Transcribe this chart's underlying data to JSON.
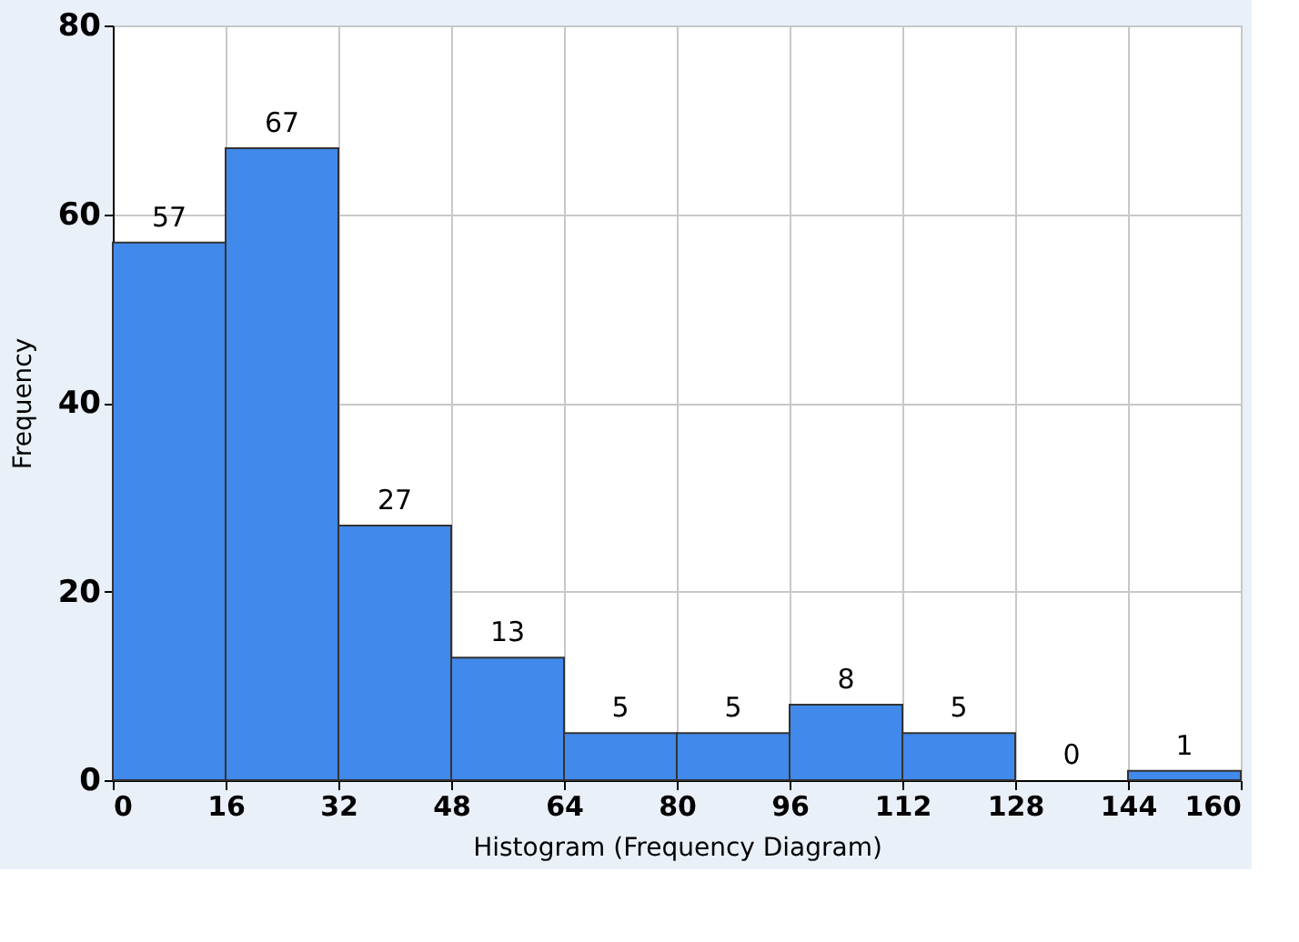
{
  "chart_data": {
    "type": "histogram",
    "bins": [
      0,
      16,
      32,
      48,
      64,
      80,
      96,
      112,
      128,
      144,
      160
    ],
    "values": [
      57,
      67,
      27,
      13,
      5,
      5,
      8,
      5,
      0,
      1
    ],
    "color": "#4189ea",
    "xlabel": "Histogram (Frequency Diagram)",
    "ylabel": "Frequency",
    "xlim": [
      0,
      160
    ],
    "xticks": [
      0,
      16,
      32,
      48,
      64,
      80,
      96,
      112,
      128,
      144,
      160
    ],
    "ylim": [
      0,
      80
    ],
    "yticks": [
      0,
      20,
      40,
      60,
      80
    ],
    "grid": true,
    "data_labels": true
  }
}
